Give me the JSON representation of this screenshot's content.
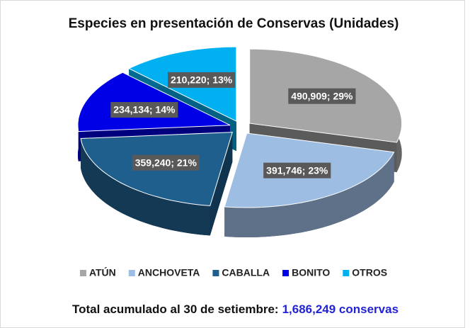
{
  "chart_data": {
    "type": "pie",
    "title": "Especies en presentación de Conservas (Unidades)",
    "categories": [
      "ATÚN",
      "ANCHOVETA",
      "CABALLA",
      "BONITO",
      "OTROS"
    ],
    "values": [
      490909,
      391746,
      359240,
      234134,
      210220
    ],
    "value_labels": [
      "490,909; 29%",
      "391,746; 23%",
      "359,240; 21%",
      "234,134; 14%",
      "210,220; 13%"
    ],
    "colors": [
      "#a6a6a6",
      "#9dbde3",
      "#1f5f8e",
      "#0000e6",
      "#00b0f0"
    ],
    "legend": "bottom",
    "footer": {
      "text": "Total acumulado al 30 de setiembre:",
      "total": "1,686,249 conservas"
    }
  }
}
